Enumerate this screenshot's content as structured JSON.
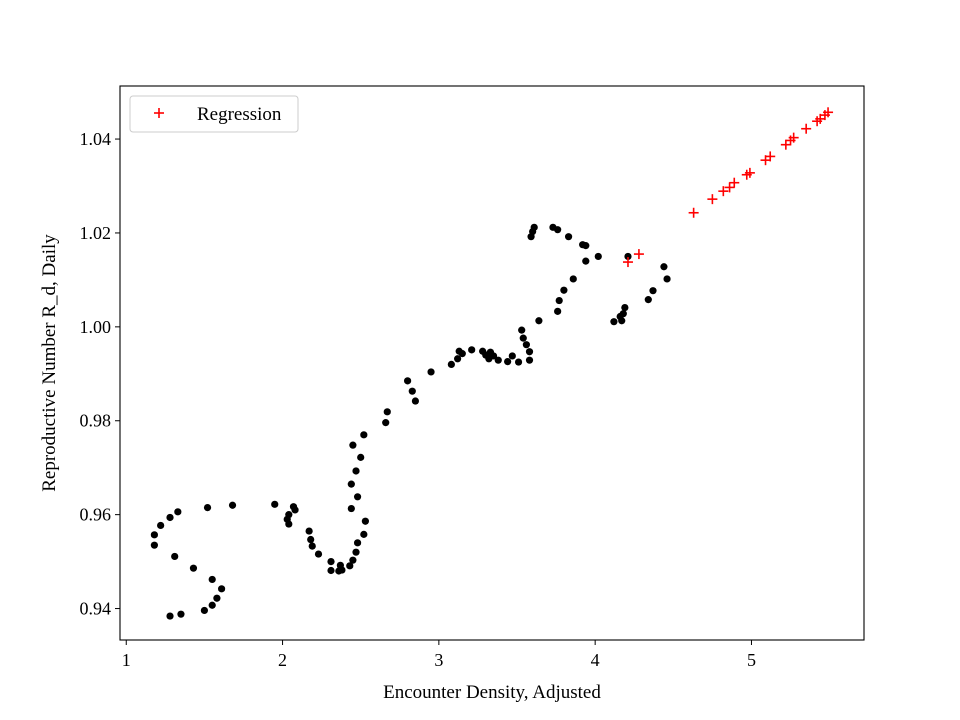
{
  "chart_data": {
    "type": "scatter",
    "xlabel": "Encounter Density, Adjusted",
    "ylabel": "Reproductive Number R_d, Daily",
    "xlim": [
      0.96,
      5.72
    ],
    "ylim": [
      0.9333,
      1.0513
    ],
    "x_ticks": [
      1,
      2,
      3,
      4,
      5
    ],
    "y_ticks": [
      0.94,
      0.96,
      0.98,
      1.0,
      1.02,
      1.04
    ],
    "x_tick_labels": [
      "1",
      "2",
      "3",
      "4",
      "5"
    ],
    "y_tick_labels": [
      "0.94",
      "0.96",
      "0.98",
      "1.00",
      "1.02",
      "1.04"
    ],
    "grid": false,
    "legend_position": "top-left",
    "colors": {
      "observed": "#000000",
      "regression": "#ff0000"
    },
    "series": [
      {
        "marker": "dot",
        "points": [
          [
            1.18,
            0.9535
          ],
          [
            1.18,
            0.9557
          ],
          [
            1.22,
            0.9577
          ],
          [
            1.28,
            0.9594
          ],
          [
            1.33,
            0.9606
          ],
          [
            1.31,
            0.9511
          ],
          [
            1.43,
            0.9486
          ],
          [
            1.55,
            0.9462
          ],
          [
            1.61,
            0.9442
          ],
          [
            1.58,
            0.9422
          ],
          [
            1.55,
            0.9407
          ],
          [
            1.5,
            0.9396
          ],
          [
            1.35,
            0.9388
          ],
          [
            1.28,
            0.9384
          ],
          [
            1.52,
            0.9615
          ],
          [
            1.68,
            0.962
          ],
          [
            1.95,
            0.9622
          ],
          [
            2.07,
            0.9617
          ],
          [
            2.08,
            0.961
          ],
          [
            2.04,
            0.96
          ],
          [
            2.03,
            0.959
          ],
          [
            2.04,
            0.958
          ],
          [
            2.17,
            0.9565
          ],
          [
            2.18,
            0.9547
          ],
          [
            2.19,
            0.9533
          ],
          [
            2.23,
            0.9516
          ],
          [
            2.31,
            0.95
          ],
          [
            2.31,
            0.9481
          ],
          [
            2.36,
            0.948
          ],
          [
            2.38,
            0.9482
          ],
          [
            2.37,
            0.9492
          ],
          [
            2.43,
            0.9491
          ],
          [
            2.45,
            0.9503
          ],
          [
            2.47,
            0.952
          ],
          [
            2.48,
            0.954
          ],
          [
            2.52,
            0.9558
          ],
          [
            2.53,
            0.9586
          ],
          [
            2.44,
            0.9613
          ],
          [
            2.48,
            0.9638
          ],
          [
            2.44,
            0.9665
          ],
          [
            2.47,
            0.9693
          ],
          [
            2.5,
            0.9722
          ],
          [
            2.45,
            0.9748
          ],
          [
            2.52,
            0.977
          ],
          [
            2.66,
            0.9796
          ],
          [
            2.67,
            0.9819
          ],
          [
            2.8,
            0.9885
          ],
          [
            2.83,
            0.9863
          ],
          [
            2.85,
            0.9842
          ],
          [
            2.95,
            0.9904
          ],
          [
            3.08,
            0.992
          ],
          [
            3.12,
            0.9932
          ],
          [
            3.13,
            0.9948
          ],
          [
            3.15,
            0.9943
          ],
          [
            3.21,
            0.9951
          ],
          [
            3.28,
            0.9948
          ],
          [
            3.3,
            0.994
          ],
          [
            3.32,
            0.9932
          ],
          [
            3.33,
            0.9946
          ],
          [
            3.35,
            0.9938
          ],
          [
            3.38,
            0.9929
          ],
          [
            3.44,
            0.9926
          ],
          [
            3.47,
            0.9938
          ],
          [
            3.51,
            0.9925
          ],
          [
            3.53,
            0.9993
          ],
          [
            3.54,
            0.9976
          ],
          [
            3.56,
            0.9962
          ],
          [
            3.58,
            0.9947
          ],
          [
            3.58,
            0.9929
          ],
          [
            3.64,
            1.0013
          ],
          [
            3.59,
            1.0192
          ],
          [
            3.6,
            1.0203
          ],
          [
            3.61,
            1.0212
          ],
          [
            3.73,
            1.0212
          ],
          [
            3.76,
            1.0207
          ],
          [
            3.83,
            1.0192
          ],
          [
            3.92,
            1.0175
          ],
          [
            3.94,
            1.0173
          ],
          [
            4.02,
            1.015
          ],
          [
            3.94,
            1.014
          ],
          [
            3.86,
            1.0102
          ],
          [
            3.8,
            1.0078
          ],
          [
            3.77,
            1.0056
          ],
          [
            3.76,
            1.0033
          ],
          [
            4.12,
            1.0011
          ],
          [
            4.16,
            1.0022
          ],
          [
            4.17,
            1.0013
          ],
          [
            4.18,
            1.0028
          ],
          [
            4.19,
            1.0041
          ],
          [
            4.21,
            1.015
          ],
          [
            4.34,
            1.0058
          ],
          [
            4.37,
            1.0077
          ],
          [
            4.44,
            1.0128
          ],
          [
            4.46,
            1.0102
          ]
        ]
      },
      {
        "name": "Regression",
        "marker": "plus",
        "points": [
          [
            4.21,
            1.0138
          ],
          [
            4.28,
            1.0155
          ],
          [
            4.63,
            1.0243
          ],
          [
            4.75,
            1.0272
          ],
          [
            4.82,
            1.0289
          ],
          [
            4.86,
            1.0297
          ],
          [
            4.89,
            1.0307
          ],
          [
            4.97,
            1.0324
          ],
          [
            4.99,
            1.0328
          ],
          [
            5.09,
            1.0355
          ],
          [
            5.12,
            1.0363
          ],
          [
            5.22,
            1.0388
          ],
          [
            5.25,
            1.0397
          ],
          [
            5.27,
            1.0403
          ],
          [
            5.35,
            1.0422
          ],
          [
            5.42,
            1.0438
          ],
          [
            5.44,
            1.0443
          ],
          [
            5.47,
            1.0451
          ],
          [
            5.49,
            1.0457
          ]
        ]
      }
    ]
  }
}
